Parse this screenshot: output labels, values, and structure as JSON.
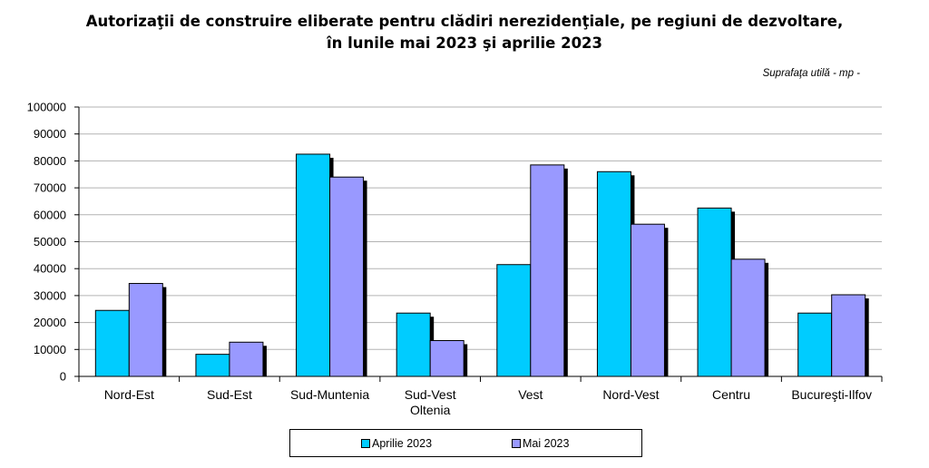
{
  "title_line1": "Autorizaţii de construire eliberate pentru clădiri nerezidenţiale, pe regiuni de dezvoltare,",
  "title_line2": "în lunile mai 2023 şi aprilie 2023",
  "unit_note": "Suprafaţa utilă - mp -",
  "colors": {
    "series1": "#00ccff",
    "series2": "#9999ff",
    "shadow": "#000000",
    "grid": "#b3b3b3"
  },
  "chart_data": {
    "type": "bar",
    "categories": [
      [
        "Nord-Est"
      ],
      [
        "Sud-Est"
      ],
      [
        "Sud-Muntenia"
      ],
      [
        "Sud-Vest",
        "Oltenia"
      ],
      [
        "Vest"
      ],
      [
        "Nord-Vest"
      ],
      [
        "Centru"
      ],
      [
        "Bucureşti-Ilfov"
      ]
    ],
    "series": [
      {
        "name": "Aprilie 2023",
        "values": [
          24500,
          8200,
          82500,
          23500,
          41500,
          76000,
          62500,
          23500
        ]
      },
      {
        "name": "Mai 2023",
        "values": [
          34500,
          12700,
          74000,
          13300,
          78500,
          56500,
          43500,
          30300
        ]
      }
    ],
    "ylim": [
      0,
      100000
    ],
    "yticks": [
      "0",
      "10000",
      "20000",
      "30000",
      "40000",
      "50000",
      "60000",
      "70000",
      "80000",
      "90000",
      "100000"
    ],
    "grid": true,
    "legend_position": "bottom"
  }
}
